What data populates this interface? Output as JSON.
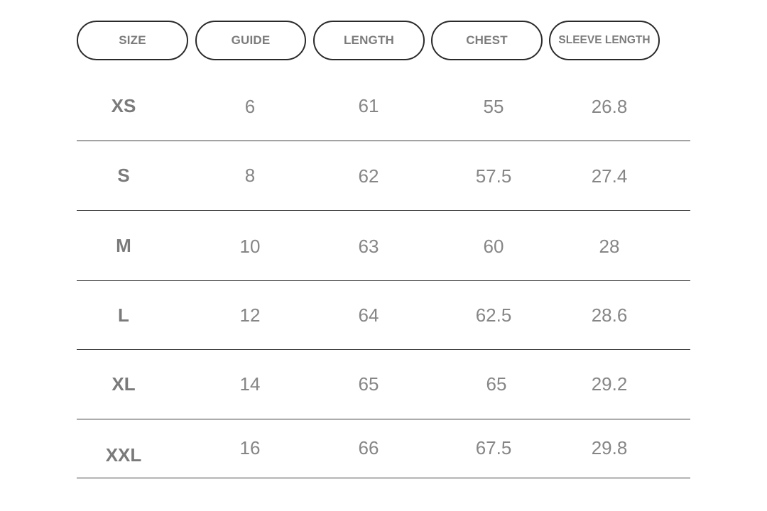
{
  "headers": [
    "SIZE",
    "GUIDE",
    "LENGTH",
    "CHEST",
    "SLEEVE LENGTH"
  ],
  "rows": [
    {
      "size": "XS",
      "guide": "6",
      "length": "61",
      "chest": "55",
      "sleeve": "26.8"
    },
    {
      "size": "S",
      "guide": "8",
      "length": "62",
      "chest": "57.5",
      "sleeve": "27.4"
    },
    {
      "size": "M",
      "guide": "10",
      "length": "63",
      "chest": "60",
      "sleeve": "28"
    },
    {
      "size": "L",
      "guide": "12",
      "length": "64",
      "chest": "62.5",
      "sleeve": "28.6"
    },
    {
      "size": "XL",
      "guide": "14",
      "length": "65",
      "chest": "65",
      "sleeve": "29.2"
    },
    {
      "size": "XXL",
      "guide": "16",
      "length": "66",
      "chest": "67.5",
      "sleeve": "29.8"
    }
  ]
}
